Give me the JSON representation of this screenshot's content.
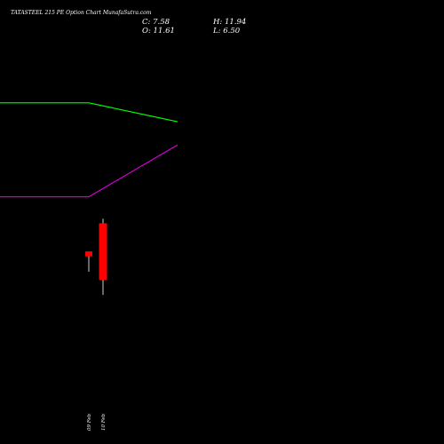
{
  "title": "TATASTEEL 215 PE Option Chart MunafaSutra.com",
  "ohlc": {
    "c_label": "C:",
    "c": "7.58",
    "h_label": "H:",
    "h": "11.94",
    "o_label": "O:",
    "o": "11.61",
    "l_label": "L:",
    "l": "6.50"
  },
  "chart_data": {
    "type": "candlestick",
    "title": "TATASTEEL 215 PE Option Chart MunafaSutra.com",
    "categories": [
      "09 Feb",
      "10 Feb"
    ],
    "candles": [
      {
        "date": "09 Feb",
        "open": 9.6,
        "high": 9.6,
        "low": 8.15,
        "close": 9.25
      },
      {
        "date": "10 Feb",
        "open": 11.61,
        "high": 11.94,
        "low": 6.5,
        "close": 7.58
      }
    ],
    "overlay_lines": [
      {
        "color": "#00ff00",
        "points": [
          [
            "09 Feb",
            20.2
          ],
          [
            "10 Feb",
            20.2
          ],
          [
            "11 Feb",
            18.85
          ]
        ]
      },
      {
        "color": "#cc00cc",
        "points": [
          [
            "09 Feb",
            13.5
          ],
          [
            "10 Feb",
            13.5
          ],
          [
            "11 Feb",
            17.2
          ]
        ]
      }
    ],
    "colors": {
      "bearish": "#ff0000",
      "wick": "#ffffff",
      "background": "#000000"
    },
    "ylim": [
      2.2,
      25.0
    ]
  }
}
